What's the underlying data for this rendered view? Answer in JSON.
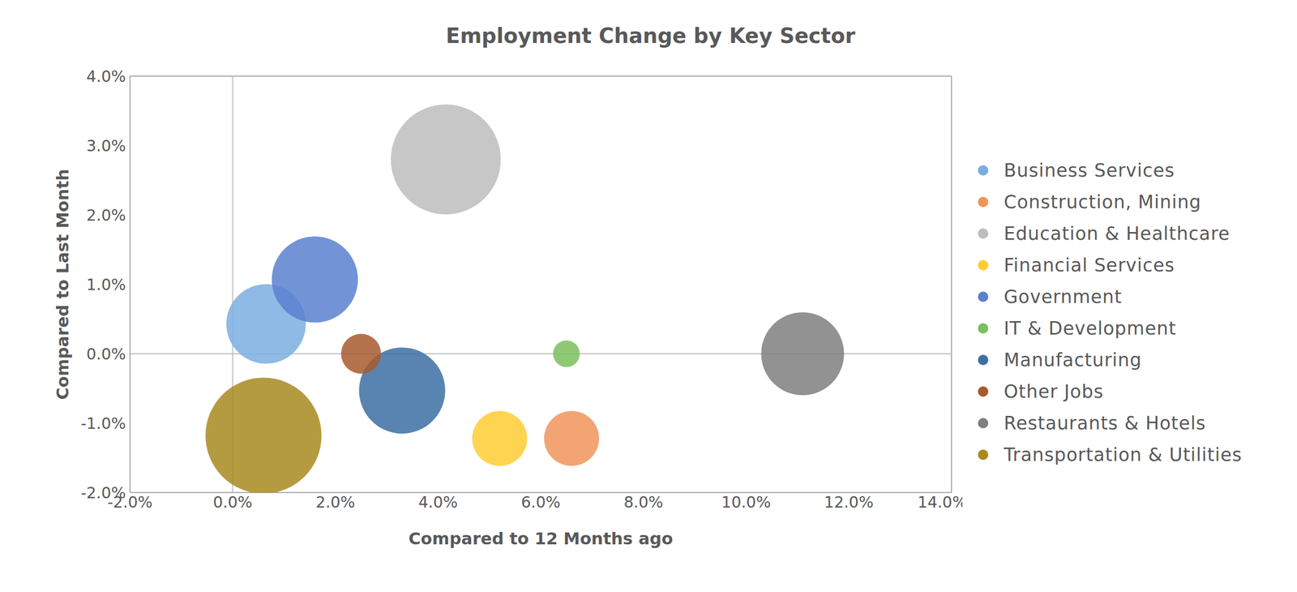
{
  "chart_data": {
    "type": "bubble",
    "title": "Employment Change by Key Sector",
    "x_label": "Compared to 12 Months ago",
    "y_label": "Compared to Last Month",
    "xlim": [
      -2,
      14
    ],
    "ylim": [
      -2,
      4
    ],
    "xticks": [
      {
        "value": -2,
        "label": "-2.0%"
      },
      {
        "value": 0,
        "label": "0.0%"
      },
      {
        "value": 2,
        "label": "2.0%"
      },
      {
        "value": 4,
        "label": "4.0%"
      },
      {
        "value": 6,
        "label": "6.0%"
      },
      {
        "value": 8,
        "label": "8.0%"
      },
      {
        "value": 10,
        "label": "10.0%"
      },
      {
        "value": 12,
        "label": "12.0%"
      },
      {
        "value": 14,
        "label": "14.0%"
      }
    ],
    "yticks": [
      {
        "value": -2,
        "label": "-2.0%"
      },
      {
        "value": -1,
        "label": "-1.0%"
      },
      {
        "value": 0,
        "label": "0.0%"
      },
      {
        "value": 1,
        "label": "1.0%"
      },
      {
        "value": 2,
        "label": "2.0%"
      },
      {
        "value": 3,
        "label": "3.0%"
      },
      {
        "value": 4,
        "label": "4.0%"
      }
    ],
    "legend": "right",
    "marker": "circle",
    "series": [
      {
        "name": "Business Services",
        "color": "#7aaee0",
        "x": [
          0.65
        ],
        "y": [
          0.43
        ],
        "size": [
          23
        ]
      },
      {
        "name": "Construction, Mining",
        "color": "#f0955a",
        "x": [
          6.6
        ],
        "y": [
          -1.22
        ],
        "size": [
          11
        ]
      },
      {
        "name": "Education & Healthcare",
        "color": "#bdbdbd",
        "x": [
          4.15
        ],
        "y": [
          2.8
        ],
        "size": [
          44
        ]
      },
      {
        "name": "Financial Services",
        "color": "#ffcc33",
        "x": [
          5.2
        ],
        "y": [
          -1.22
        ],
        "size": [
          11
        ]
      },
      {
        "name": "Government",
        "color": "#5b80d0",
        "x": [
          1.6
        ],
        "y": [
          1.07
        ],
        "size": [
          27
        ]
      },
      {
        "name": "IT & Development",
        "color": "#7bbf5e",
        "x": [
          6.5
        ],
        "y": [
          0.0
        ],
        "size": [
          2.6
        ]
      },
      {
        "name": "Manufacturing",
        "color": "#3c6fa3",
        "x": [
          3.3
        ],
        "y": [
          -0.53
        ],
        "size": [
          27
        ]
      },
      {
        "name": "Other Jobs",
        "color": "#a85a2e",
        "x": [
          2.5
        ],
        "y": [
          0.0
        ],
        "size": [
          5.8
        ]
      },
      {
        "name": "Restaurants & Hotels",
        "color": "#7f7f7f",
        "x": [
          11.1
        ],
        "y": [
          0.0
        ],
        "size": [
          25
        ]
      },
      {
        "name": "Transportation & Utilities",
        "color": "#a88a1e",
        "x": [
          0.6
        ],
        "y": [
          -1.18
        ],
        "size": [
          49
        ]
      }
    ]
  }
}
